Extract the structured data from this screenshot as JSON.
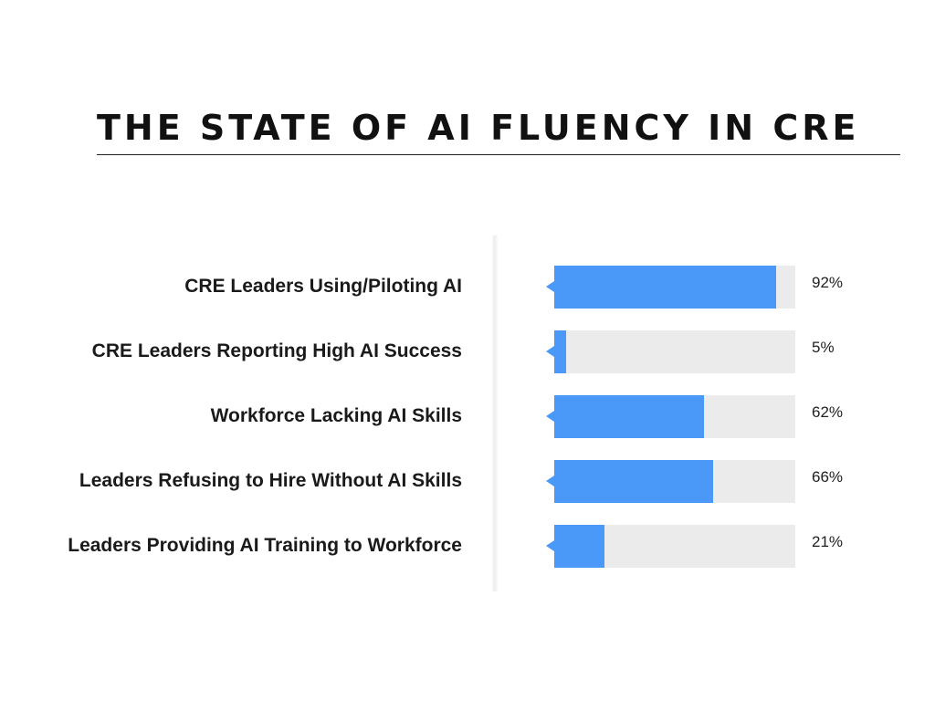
{
  "title": "THE STATE OF AI FLUENCY IN CRE",
  "colors": {
    "bar_fill": "#4a98f7",
    "bar_track": "#ebebeb",
    "text": "#1a1a1a"
  },
  "chart_data": {
    "type": "bar",
    "orientation": "horizontal",
    "title": "THE STATE OF AI FLUENCY IN CRE",
    "xlabel": "",
    "ylabel": "",
    "xlim": [
      0,
      100
    ],
    "grid": false,
    "legend": "none",
    "categories": [
      "CRE Leaders Using/Piloting AI",
      "CRE Leaders Reporting High AI Success",
      "Workforce Lacking AI Skills",
      "Leaders Refusing to Hire Without AI Skills",
      "Leaders Providing AI Training to Workforce"
    ],
    "values": [
      92,
      5,
      62,
      66,
      21
    ],
    "value_labels": [
      "92%",
      "5%",
      "62%",
      "66%",
      "21%"
    ]
  }
}
